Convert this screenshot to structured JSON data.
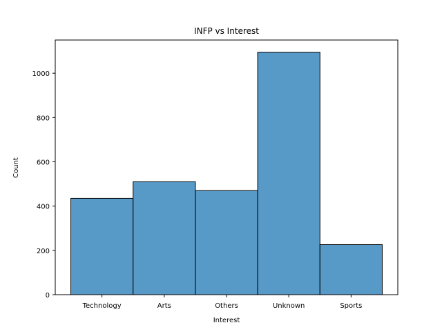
{
  "chart_data": {
    "type": "bar",
    "title": "INFP vs Interest",
    "xlabel": "Interest",
    "ylabel": "Count",
    "categories": [
      "Technology",
      "Arts",
      "Others",
      "Unknown",
      "Sports"
    ],
    "values": [
      435,
      510,
      470,
      1095,
      226
    ],
    "ylim": [
      0,
      1150
    ],
    "yticks": [
      0,
      200,
      400,
      600,
      800,
      1000
    ],
    "grid": false,
    "colors": {
      "bar_fill": "#5799c7",
      "bar_edge": "#000000",
      "axis": "#000000",
      "background": "#ffffff"
    }
  }
}
